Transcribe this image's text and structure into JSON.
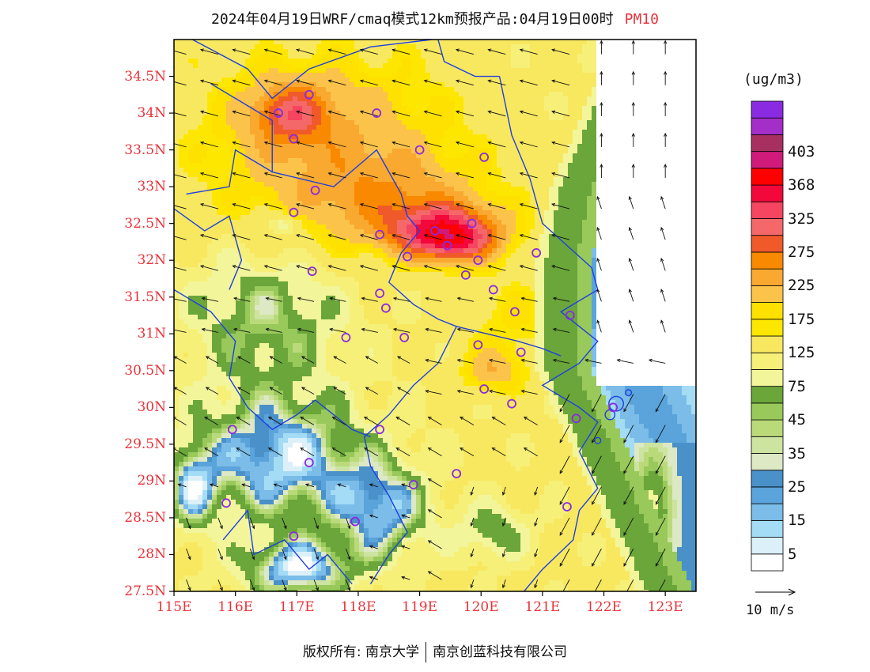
{
  "title": {
    "main": "2024年04月19日WRF/cmaq模式12km预报产品:04月19日00时",
    "pollutant": "PM10"
  },
  "axes": {
    "lat_labels": [
      "34.5N",
      "34N",
      "33.5N",
      "33N",
      "32.5N",
      "32N",
      "31.5N",
      "31N",
      "30.5N",
      "30N",
      "29.5N",
      "29N",
      "28.5N",
      "28N",
      "27.5N"
    ],
    "lon_labels": [
      "115E",
      "116E",
      "117E",
      "118E",
      "119E",
      "120E",
      "121E",
      "122E",
      "123E"
    ],
    "label_color": "#e8333a"
  },
  "map": {
    "lat_range": [
      27.5,
      35.0
    ],
    "lon_range": [
      115.0,
      123.5
    ],
    "boundary_color": "#1f3fe0",
    "station_marker_color": "#8a2be2",
    "vector_color": "#111111",
    "stations": [
      [
        117.2,
        34.25
      ],
      [
        116.7,
        34.0
      ],
      [
        116.95,
        33.65
      ],
      [
        118.3,
        34.0
      ],
      [
        119.0,
        33.5
      ],
      [
        120.05,
        33.4
      ],
      [
        117.3,
        32.95
      ],
      [
        116.95,
        32.65
      ],
      [
        118.35,
        32.35
      ],
      [
        119.25,
        32.4
      ],
      [
        119.85,
        32.5
      ],
      [
        118.8,
        32.05
      ],
      [
        117.25,
        31.85
      ],
      [
        119.45,
        32.2
      ],
      [
        119.95,
        32.0
      ],
      [
        120.9,
        32.1
      ],
      [
        119.75,
        31.8
      ],
      [
        120.2,
        31.6
      ],
      [
        120.55,
        31.3
      ],
      [
        121.45,
        31.25
      ],
      [
        118.45,
        31.35
      ],
      [
        118.35,
        31.55
      ],
      [
        117.8,
        30.95
      ],
      [
        118.75,
        30.95
      ],
      [
        119.95,
        30.85
      ],
      [
        120.65,
        30.75
      ],
      [
        120.05,
        30.25
      ],
      [
        120.5,
        30.05
      ],
      [
        121.55,
        29.85
      ],
      [
        122.15,
        30.0
      ],
      [
        115.95,
        29.7
      ],
      [
        118.35,
        29.7
      ],
      [
        117.2,
        29.25
      ],
      [
        118.9,
        28.95
      ],
      [
        119.6,
        29.1
      ],
      [
        115.85,
        28.7
      ],
      [
        117.95,
        28.45
      ],
      [
        116.95,
        28.25
      ],
      [
        121.4,
        28.65
      ]
    ],
    "wind": {
      "arrows_note": "",
      "ref_speed": "10 m/s"
    }
  },
  "colorbar": {
    "unit": "(ug/m3)",
    "colors": [
      "#ffffff",
      "#dcf0fa",
      "#a4dcf5",
      "#7bbde8",
      "#5aa3db",
      "#4a90c9",
      "#dde8c4",
      "#cde3a0",
      "#bada7a",
      "#98c95a",
      "#6aa63a",
      "#f2f59a",
      "#f6f078",
      "#f8e860",
      "#fde600",
      "#ffe100",
      "#fbc34a",
      "#f9a830",
      "#f98900",
      "#f0592a",
      "#f5686a",
      "#f64560",
      "#f2083b",
      "#ff0000",
      "#d01b7a",
      "#a83060",
      "#a32ec8",
      "#8a2be2"
    ],
    "labels": [
      "5",
      "15",
      "25",
      "35",
      "45",
      "75",
      "125",
      "175",
      "225",
      "275",
      "325",
      "368",
      "403"
    ]
  },
  "footer": {
    "left": "版权所有: 南京大学",
    "right": "南京创蓝科技有限公司"
  }
}
